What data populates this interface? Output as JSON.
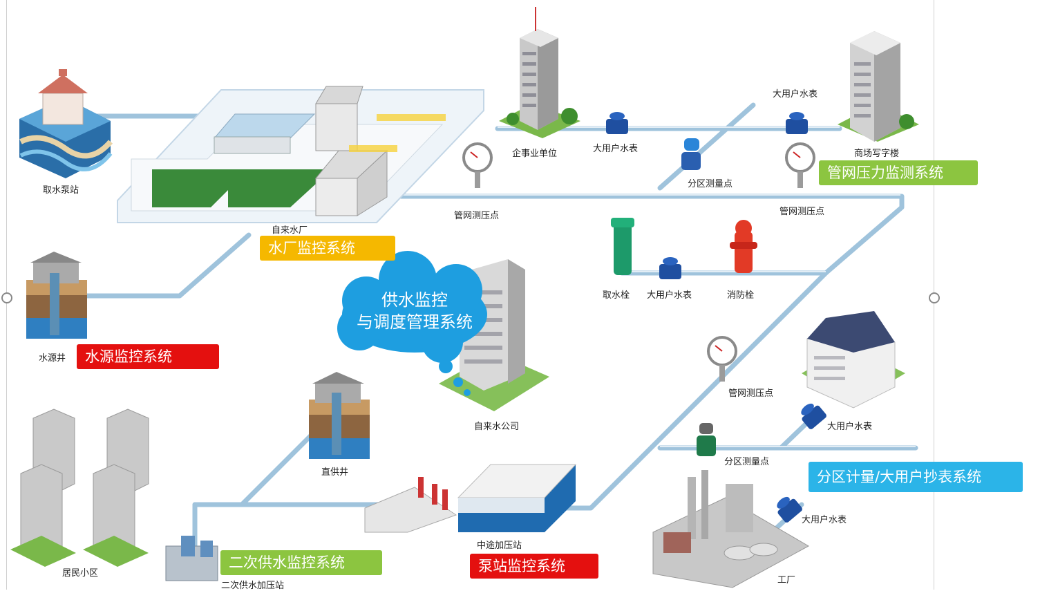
{
  "title_cloud": {
    "line1": "供水监控",
    "line2": "与调度管理系统"
  },
  "labels": {
    "intake_station": "取水泵站",
    "water_plant": "自来水厂",
    "source_well": "水源井",
    "direct_well": "直供井",
    "residential": "居民小区",
    "secondary_station": "二次供水加压站",
    "relay_station": "中途加压站",
    "company": "自来水公司",
    "enterprise": "企事业单位",
    "meter_top_1": "大用户水表",
    "meter_top_2": "大用户水表",
    "office": "商场写字楼",
    "zone_point_top": "分区测量点",
    "pressure_point_1": "管网测压点",
    "pressure_point_2": "管网测压点",
    "pressure_point_3": "管网测压点",
    "hydrant_draw": "取水栓",
    "meter_mid": "大用户水表",
    "fire_hydrant": "消防栓",
    "meter_right_1": "大用户水表",
    "zone_point_bottom": "分区测量点",
    "meter_right_2": "大用户水表",
    "factory": "工厂"
  },
  "systems": {
    "plant_monitor": "水厂监控系统",
    "source_monitor": "水源监控系统",
    "network_pressure": "管网压力监测系统",
    "secondary_supply": "二次供水监控系统",
    "pump_station": "泵站监控系统",
    "zone_metering": "分区计量/大用户抄表系统"
  },
  "colors": {
    "yellow": "#f5b800",
    "red": "#e4100f",
    "green": "#8cc540",
    "cyan": "#2bb4e8",
    "pipe": "#9fc3dc",
    "cloud": "#1e9ee0"
  },
  "icons": [
    "pump-house-icon",
    "water-plant-icon",
    "well-icon",
    "office-building-icon",
    "water-meter-icon",
    "flow-meter-icon",
    "pressure-gauge-icon",
    "hydrant-icon",
    "fire-hydrant-icon",
    "residential-building-icon",
    "booster-pump-icon",
    "tank-icon",
    "factory-icon",
    "villa-icon"
  ]
}
